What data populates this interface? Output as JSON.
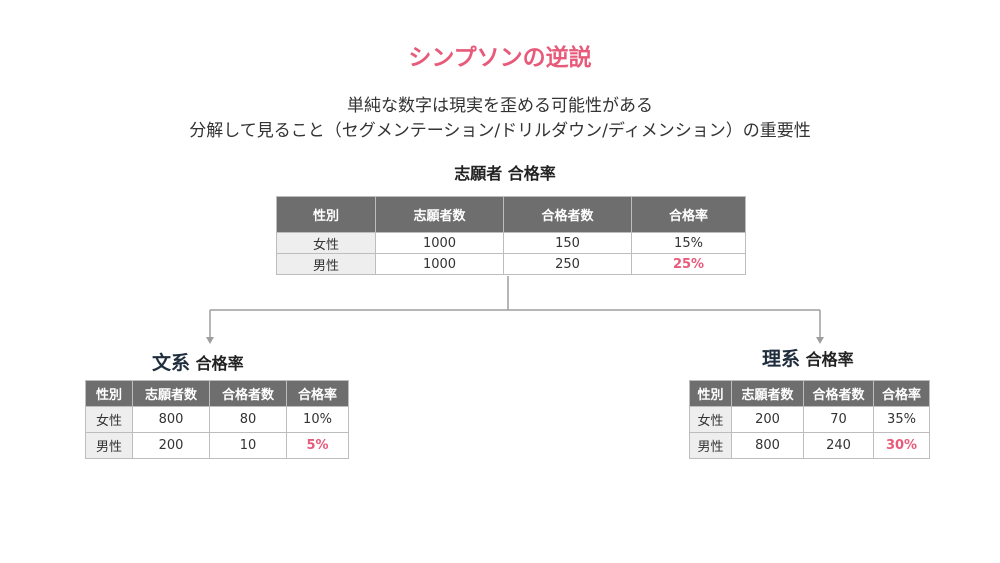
{
  "title": "シンプソンの逆説",
  "subtitle_line1": "単純な数字は現実を歪める可能性がある",
  "subtitle_line2": "分解して見ること（セグメンテーション/ドリルダウン/ディメンション）の重要性",
  "headers": [
    "性別",
    "志願者数",
    "合格者数",
    "合格率"
  ],
  "colors": {
    "accent": "#e85a7a",
    "header_bg": "#6e6e6e",
    "label_bg": "#eeeeee"
  },
  "overall": {
    "caption": "志願者 合格率",
    "rows": [
      {
        "gender": "女性",
        "applicants": "1000",
        "passed": "150",
        "rate": "15%"
      },
      {
        "gender": "男性",
        "applicants": "1000",
        "passed": "250",
        "rate": "25%"
      }
    ]
  },
  "humanities": {
    "caption_main": "文系",
    "caption_sub": "合格率",
    "rows": [
      {
        "gender": "女性",
        "applicants": "800",
        "passed": "80",
        "rate": "10%"
      },
      {
        "gender": "男性",
        "applicants": "200",
        "passed": "10",
        "rate": "5%"
      }
    ]
  },
  "science": {
    "caption_main": "理系",
    "caption_sub": "合格率",
    "rows": [
      {
        "gender": "女性",
        "applicants": "200",
        "passed": "70",
        "rate": "35%"
      },
      {
        "gender": "男性",
        "applicants": "800",
        "passed": "240",
        "rate": "30%"
      }
    ]
  }
}
